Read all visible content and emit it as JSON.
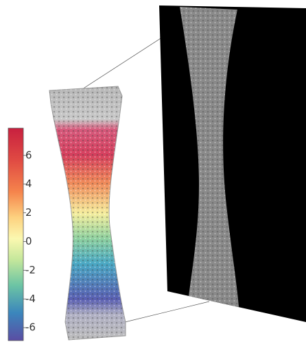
{
  "colorbar": {
    "ticks": [
      6,
      4,
      2,
      0,
      -2,
      -4,
      -6
    ],
    "lim": [
      -6.9,
      7.9
    ]
  }
}
